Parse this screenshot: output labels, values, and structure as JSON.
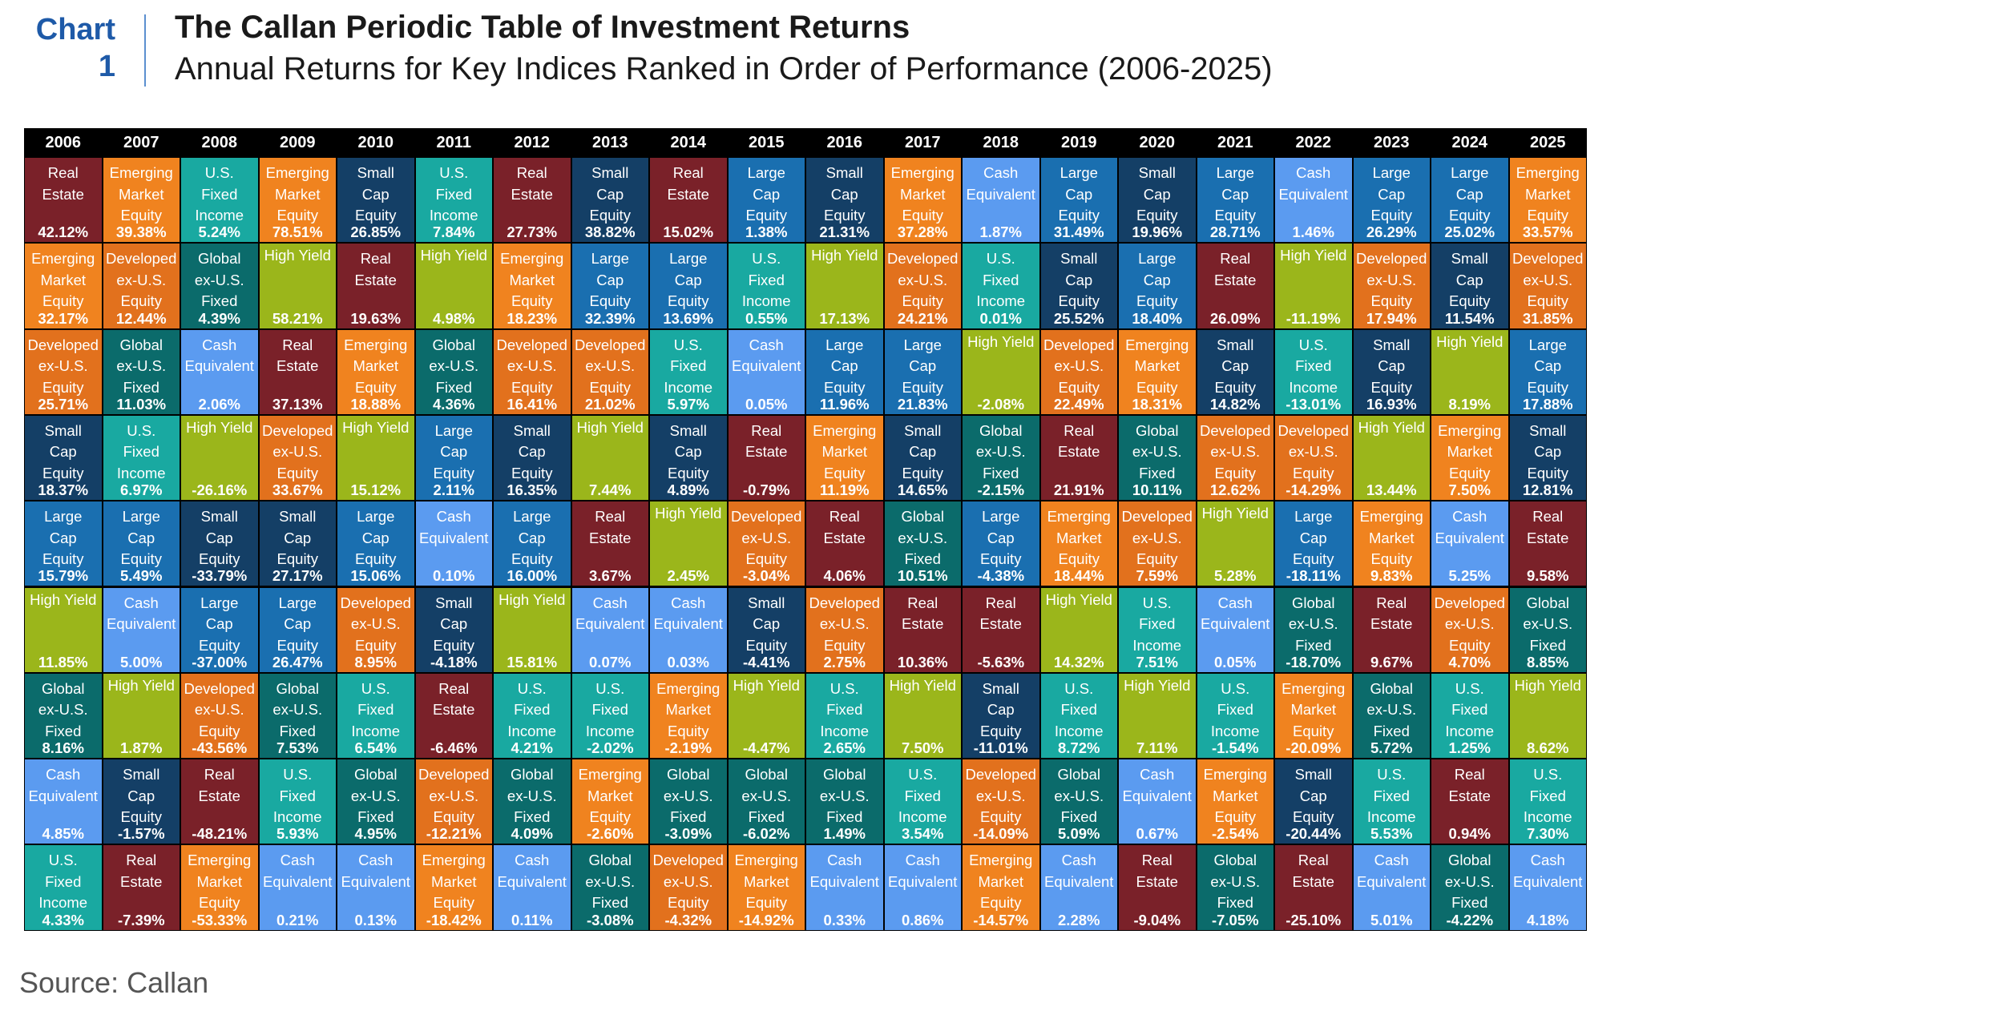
{
  "header": {
    "chart_label": "Chart\n1",
    "title": "The Callan Periodic Table of Investment Returns",
    "subtitle": "Annual Returns for Key Indices Ranked in Order of Performance (2006-2025)"
  },
  "source": "Source: Callan",
  "colors": {
    "Real Estate": "#7a2129",
    "Emerging Market Equity": "#f0831f",
    "U.S. Fixed Income": "#19a9a1",
    "Global ex-U.S. Fixed": "#0b6b6b",
    "Small Cap Equity": "#143f66",
    "Large Cap Equity": "#1a6fb0",
    "Cash Equivalent": "#5b9bf0",
    "Developed ex-U.S. Equity": "#e2711d",
    "High Yield": "#9bb61b",
    "header_bg": "#000000"
  },
  "chart_data": {
    "type": "table",
    "title": "The Callan Periodic Table of Investment Returns",
    "subtitle": "Annual Returns for Key Indices Ranked in Order of Performance (2006-2025)",
    "years": [
      "2006",
      "2007",
      "2008",
      "2009",
      "2010",
      "2011",
      "2012",
      "2013",
      "2014",
      "2015",
      "2016",
      "2017",
      "2018",
      "2019",
      "2020",
      "2021",
      "2022",
      "2023",
      "2024",
      "2025"
    ],
    "columns": [
      [
        [
          "Real Estate",
          "42.12%"
        ],
        [
          "Emerging Market Equity",
          "32.17%"
        ],
        [
          "Developed ex-U.S. Equity",
          "25.71%"
        ],
        [
          "Small Cap Equity",
          "18.37%"
        ],
        [
          "Large Cap Equity",
          "15.79%"
        ],
        [
          "High Yield",
          "11.85%"
        ],
        [
          "Global ex-U.S. Fixed",
          "8.16%"
        ],
        [
          "Cash Equivalent",
          "4.85%"
        ],
        [
          "U.S. Fixed Income",
          "4.33%"
        ]
      ],
      [
        [
          "Emerging Market Equity",
          "39.38%"
        ],
        [
          "Developed ex-U.S. Equity",
          "12.44%"
        ],
        [
          "Global ex-U.S. Fixed",
          "11.03%"
        ],
        [
          "U.S. Fixed Income",
          "6.97%"
        ],
        [
          "Large Cap Equity",
          "5.49%"
        ],
        [
          "Cash Equivalent",
          "5.00%"
        ],
        [
          "High Yield",
          "1.87%"
        ],
        [
          "Small Cap Equity",
          "-1.57%"
        ],
        [
          "Real Estate",
          "-7.39%"
        ]
      ],
      [
        [
          "U.S. Fixed Income",
          "5.24%"
        ],
        [
          "Global ex-U.S. Fixed",
          "4.39%"
        ],
        [
          "Cash Equivalent",
          "2.06%"
        ],
        [
          "High Yield",
          "-26.16%"
        ],
        [
          "Small Cap Equity",
          "-33.79%"
        ],
        [
          "Large Cap Equity",
          "-37.00%"
        ],
        [
          "Developed ex-U.S. Equity",
          "-43.56%"
        ],
        [
          "Real Estate",
          "-48.21%"
        ],
        [
          "Emerging Market Equity",
          "-53.33%"
        ]
      ],
      [
        [
          "Emerging Market Equity",
          "78.51%"
        ],
        [
          "High Yield",
          "58.21%"
        ],
        [
          "Real Estate",
          "37.13%"
        ],
        [
          "Developed ex-U.S. Equity",
          "33.67%"
        ],
        [
          "Small Cap Equity",
          "27.17%"
        ],
        [
          "Large Cap Equity",
          "26.47%"
        ],
        [
          "Global ex-U.S. Fixed",
          "7.53%"
        ],
        [
          "U.S. Fixed Income",
          "5.93%"
        ],
        [
          "Cash Equivalent",
          "0.21%"
        ]
      ],
      [
        [
          "Small Cap Equity",
          "26.85%"
        ],
        [
          "Real Estate",
          "19.63%"
        ],
        [
          "Emerging Market Equity",
          "18.88%"
        ],
        [
          "High Yield",
          "15.12%"
        ],
        [
          "Large Cap Equity",
          "15.06%"
        ],
        [
          "Developed ex-U.S. Equity",
          "8.95%"
        ],
        [
          "U.S. Fixed Income",
          "6.54%"
        ],
        [
          "Global ex-U.S. Fixed",
          "4.95%"
        ],
        [
          "Cash Equivalent",
          "0.13%"
        ]
      ],
      [
        [
          "U.S. Fixed Income",
          "7.84%"
        ],
        [
          "High Yield",
          "4.98%"
        ],
        [
          "Global ex-U.S. Fixed",
          "4.36%"
        ],
        [
          "Large Cap Equity",
          "2.11%"
        ],
        [
          "Cash Equivalent",
          "0.10%"
        ],
        [
          "Small Cap Equity",
          "-4.18%"
        ],
        [
          "Real Estate",
          "-6.46%"
        ],
        [
          "Developed ex-U.S. Equity",
          "-12.21%"
        ],
        [
          "Emerging Market Equity",
          "-18.42%"
        ]
      ],
      [
        [
          "Real Estate",
          "27.73%"
        ],
        [
          "Emerging Market Equity",
          "18.23%"
        ],
        [
          "Developed ex-U.S. Equity",
          "16.41%"
        ],
        [
          "Small Cap Equity",
          "16.35%"
        ],
        [
          "Large Cap Equity",
          "16.00%"
        ],
        [
          "High Yield",
          "15.81%"
        ],
        [
          "U.S. Fixed Income",
          "4.21%"
        ],
        [
          "Global ex-U.S. Fixed",
          "4.09%"
        ],
        [
          "Cash Equivalent",
          "0.11%"
        ]
      ],
      [
        [
          "Small Cap Equity",
          "38.82%"
        ],
        [
          "Large Cap Equity",
          "32.39%"
        ],
        [
          "Developed ex-U.S. Equity",
          "21.02%"
        ],
        [
          "High Yield",
          "7.44%"
        ],
        [
          "Real Estate",
          "3.67%"
        ],
        [
          "Cash Equivalent",
          "0.07%"
        ],
        [
          "U.S. Fixed Income",
          "-2.02%"
        ],
        [
          "Emerging Market Equity",
          "-2.60%"
        ],
        [
          "Global ex-U.S. Fixed",
          "-3.08%"
        ]
      ],
      [
        [
          "Real Estate",
          "15.02%"
        ],
        [
          "Large Cap Equity",
          "13.69%"
        ],
        [
          "U.S. Fixed Income",
          "5.97%"
        ],
        [
          "Small Cap Equity",
          "4.89%"
        ],
        [
          "High Yield",
          "2.45%"
        ],
        [
          "Cash Equivalent",
          "0.03%"
        ],
        [
          "Emerging Market Equity",
          "-2.19%"
        ],
        [
          "Global ex-U.S. Fixed",
          "-3.09%"
        ],
        [
          "Developed ex-U.S. Equity",
          "-4.32%"
        ]
      ],
      [
        [
          "Large Cap Equity",
          "1.38%"
        ],
        [
          "U.S. Fixed Income",
          "0.55%"
        ],
        [
          "Cash Equivalent",
          "0.05%"
        ],
        [
          "Real Estate",
          "-0.79%"
        ],
        [
          "Developed ex-U.S. Equity",
          "-3.04%"
        ],
        [
          "Small Cap Equity",
          "-4.41%"
        ],
        [
          "High Yield",
          "-4.47%"
        ],
        [
          "Global ex-U.S. Fixed",
          "-6.02%"
        ],
        [
          "Emerging Market Equity",
          "-14.92%"
        ]
      ],
      [
        [
          "Small Cap Equity",
          "21.31%"
        ],
        [
          "High Yield",
          "17.13%"
        ],
        [
          "Large Cap Equity",
          "11.96%"
        ],
        [
          "Emerging Market Equity",
          "11.19%"
        ],
        [
          "Real Estate",
          "4.06%"
        ],
        [
          "Developed ex-U.S. Equity",
          "2.75%"
        ],
        [
          "U.S. Fixed Income",
          "2.65%"
        ],
        [
          "Global ex-U.S. Fixed",
          "1.49%"
        ],
        [
          "Cash Equivalent",
          "0.33%"
        ]
      ],
      [
        [
          "Emerging Market Equity",
          "37.28%"
        ],
        [
          "Developed ex-U.S. Equity",
          "24.21%"
        ],
        [
          "Large Cap Equity",
          "21.83%"
        ],
        [
          "Small Cap Equity",
          "14.65%"
        ],
        [
          "Global ex-U.S. Fixed",
          "10.51%"
        ],
        [
          "Real Estate",
          "10.36%"
        ],
        [
          "High Yield",
          "7.50%"
        ],
        [
          "U.S. Fixed Income",
          "3.54%"
        ],
        [
          "Cash Equivalent",
          "0.86%"
        ]
      ],
      [
        [
          "Cash Equivalent",
          "1.87%"
        ],
        [
          "U.S. Fixed Income",
          "0.01%"
        ],
        [
          "High Yield",
          "-2.08%"
        ],
        [
          "Global ex-U.S. Fixed",
          "-2.15%"
        ],
        [
          "Large Cap Equity",
          "-4.38%"
        ],
        [
          "Real Estate",
          "-5.63%"
        ],
        [
          "Small Cap Equity",
          "-11.01%"
        ],
        [
          "Developed ex-U.S. Equity",
          "-14.09%"
        ],
        [
          "Emerging Market Equity",
          "-14.57%"
        ]
      ],
      [
        [
          "Large Cap Equity",
          "31.49%"
        ],
        [
          "Small Cap Equity",
          "25.52%"
        ],
        [
          "Developed ex-U.S. Equity",
          "22.49%"
        ],
        [
          "Real Estate",
          "21.91%"
        ],
        [
          "Emerging Market Equity",
          "18.44%"
        ],
        [
          "High Yield",
          "14.32%"
        ],
        [
          "U.S. Fixed Income",
          "8.72%"
        ],
        [
          "Global ex-U.S. Fixed",
          "5.09%"
        ],
        [
          "Cash Equivalent",
          "2.28%"
        ]
      ],
      [
        [
          "Small Cap Equity",
          "19.96%"
        ],
        [
          "Large Cap Equity",
          "18.40%"
        ],
        [
          "Emerging Market Equity",
          "18.31%"
        ],
        [
          "Global ex-U.S. Fixed",
          "10.11%"
        ],
        [
          "Developed ex-U.S. Equity",
          "7.59%"
        ],
        [
          "U.S. Fixed Income",
          "7.51%"
        ],
        [
          "High Yield",
          "7.11%"
        ],
        [
          "Cash Equivalent",
          "0.67%"
        ],
        [
          "Real Estate",
          "-9.04%"
        ]
      ],
      [
        [
          "Large Cap Equity",
          "28.71%"
        ],
        [
          "Real Estate",
          "26.09%"
        ],
        [
          "Small Cap Equity",
          "14.82%"
        ],
        [
          "Developed ex-U.S. Equity",
          "12.62%"
        ],
        [
          "High Yield",
          "5.28%"
        ],
        [
          "Cash Equivalent",
          "0.05%"
        ],
        [
          "U.S. Fixed Income",
          "-1.54%"
        ],
        [
          "Emerging Market Equity",
          "-2.54%"
        ],
        [
          "Global ex-U.S. Fixed",
          "-7.05%"
        ]
      ],
      [
        [
          "Cash Equivalent",
          "1.46%"
        ],
        [
          "High Yield",
          "-11.19%"
        ],
        [
          "U.S. Fixed Income",
          "-13.01%"
        ],
        [
          "Developed ex-U.S. Equity",
          "-14.29%"
        ],
        [
          "Large Cap Equity",
          "-18.11%"
        ],
        [
          "Global ex-U.S. Fixed",
          "-18.70%"
        ],
        [
          "Emerging Market Equity",
          "-20.09%"
        ],
        [
          "Small Cap Equity",
          "-20.44%"
        ],
        [
          "Real Estate",
          "-25.10%"
        ]
      ],
      [
        [
          "Large Cap Equity",
          "26.29%"
        ],
        [
          "Developed ex-U.S. Equity",
          "17.94%"
        ],
        [
          "Small Cap Equity",
          "16.93%"
        ],
        [
          "High Yield",
          "13.44%"
        ],
        [
          "Emerging Market Equity",
          "9.83%"
        ],
        [
          "Real Estate",
          "9.67%"
        ],
        [
          "Global ex-U.S. Fixed",
          "5.72%"
        ],
        [
          "U.S. Fixed Income",
          "5.53%"
        ],
        [
          "Cash Equivalent",
          "5.01%"
        ]
      ],
      [
        [
          "Large Cap Equity",
          "25.02%"
        ],
        [
          "Small Cap Equity",
          "11.54%"
        ],
        [
          "High Yield",
          "8.19%"
        ],
        [
          "Emerging Market Equity",
          "7.50%"
        ],
        [
          "Cash Equivalent",
          "5.25%"
        ],
        [
          "Developed ex-U.S. Equity",
          "4.70%"
        ],
        [
          "U.S. Fixed Income",
          "1.25%"
        ],
        [
          "Real Estate",
          "0.94%"
        ],
        [
          "Global ex-U.S. Fixed",
          "-4.22%"
        ]
      ],
      [
        [
          "Emerging Market Equity",
          "33.57%"
        ],
        [
          "Developed ex-U.S. Equity",
          "31.85%"
        ],
        [
          "Large Cap Equity",
          "17.88%"
        ],
        [
          "Small Cap Equity",
          "12.81%"
        ],
        [
          "Real Estate",
          "9.58%"
        ],
        [
          "Global ex-U.S. Fixed",
          "8.85%"
        ],
        [
          "High Yield",
          "8.62%"
        ],
        [
          "U.S. Fixed Income",
          "7.30%"
        ],
        [
          "Cash Equivalent",
          "4.18%"
        ]
      ]
    ]
  }
}
